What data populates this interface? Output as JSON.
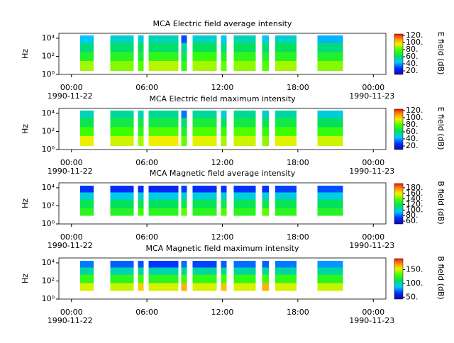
{
  "chart_data": [
    {
      "type": "heatmap",
      "title": "MCA  Electric field average intensity",
      "ylabel": "Hz",
      "colorbar_label": "E field (dB)",
      "colormap": "jet",
      "yscale": "log",
      "xlim": [
        -1,
        25
      ],
      "ylim": [
        1,
        35000
      ],
      "xticks": [
        {
          "value": 0,
          "label": "00:00",
          "date": "1990-11-22"
        },
        {
          "value": 6,
          "label": "06:00"
        },
        {
          "value": 12,
          "label": "12:00"
        },
        {
          "value": 18,
          "label": "18:00"
        },
        {
          "value": 24,
          "label": "00:00",
          "date": "1990-11-23"
        }
      ],
      "yticks": [
        {
          "value": 1,
          "label": "10⁰"
        },
        {
          "value": 100,
          "label": "10²"
        },
        {
          "value": 10000,
          "label": "10⁴"
        }
      ],
      "clim": [
        10,
        124
      ],
      "cticks": [
        {
          "value": 20,
          "label": "20."
        },
        {
          "value": 40,
          "label": "40."
        },
        {
          "value": 60,
          "label": "60."
        },
        {
          "value": 80,
          "label": "80."
        },
        {
          "value": 100,
          "label": "100."
        },
        {
          "value": 120,
          "label": "120."
        }
      ],
      "segments": [
        [
          0.68,
          1.75
        ],
        [
          3.1,
          4.96
        ],
        [
          5.3,
          5.75
        ],
        [
          6.14,
          8.5
        ],
        [
          8.73,
          9.18
        ],
        [
          9.63,
          11.55
        ],
        [
          11.9,
          12.34
        ],
        [
          12.9,
          14.65
        ],
        [
          15.15,
          15.7
        ],
        [
          16.2,
          17.9
        ],
        [
          19.55,
          21.6
        ]
      ],
      "y_bins": [
        2.5,
        30,
        300,
        3000,
        20000
      ],
      "values": [
        [
          88,
          70,
          58,
          45
        ],
        [
          85,
          72,
          60,
          50
        ],
        [
          80,
          68,
          62,
          48
        ],
        [
          90,
          74,
          60,
          52
        ],
        [
          75,
          65,
          55,
          30
        ],
        [
          88,
          76,
          62,
          50
        ],
        [
          82,
          70,
          58,
          44
        ],
        [
          86,
          74,
          62,
          52
        ],
        [
          80,
          70,
          60,
          46
        ],
        [
          88,
          72,
          62,
          50
        ],
        [
          85,
          70,
          58,
          42
        ]
      ]
    },
    {
      "type": "heatmap",
      "title": "MCA  Electric field maximum intensity",
      "ylabel": "Hz",
      "colorbar_label": "E field (dB)",
      "colormap": "jet",
      "yscale": "log",
      "xlim": [
        -1,
        25
      ],
      "ylim": [
        1,
        35000
      ],
      "xticks": [
        {
          "value": 0,
          "label": "00:00",
          "date": "1990-11-22"
        },
        {
          "value": 6,
          "label": "06:00"
        },
        {
          "value": 12,
          "label": "12:00"
        },
        {
          "value": 18,
          "label": "18:00"
        },
        {
          "value": 24,
          "label": "00:00",
          "date": "1990-11-23"
        }
      ],
      "yticks": [
        {
          "value": 1,
          "label": "10⁰"
        },
        {
          "value": 100,
          "label": "10²"
        },
        {
          "value": 10000,
          "label": "10⁴"
        }
      ],
      "clim": [
        10,
        124
      ],
      "cticks": [
        {
          "value": 20,
          "label": "20."
        },
        {
          "value": 40,
          "label": "40."
        },
        {
          "value": 60,
          "label": "60."
        },
        {
          "value": 80,
          "label": "80."
        },
        {
          "value": 100,
          "label": "100."
        },
        {
          "value": 120,
          "label": "120."
        }
      ],
      "segments": [
        [
          0.68,
          1.75
        ],
        [
          3.1,
          4.96
        ],
        [
          5.3,
          5.75
        ],
        [
          6.14,
          8.5
        ],
        [
          8.73,
          9.18
        ],
        [
          9.63,
          11.55
        ],
        [
          11.9,
          12.34
        ],
        [
          12.9,
          14.65
        ],
        [
          15.15,
          15.7
        ],
        [
          16.2,
          17.9
        ],
        [
          19.55,
          21.6
        ]
      ],
      "y_bins": [
        2.5,
        30,
        300,
        3000,
        20000
      ],
      "values": [
        [
          95,
          78,
          64,
          52
        ],
        [
          92,
          78,
          66,
          55
        ],
        [
          88,
          74,
          66,
          52
        ],
        [
          96,
          80,
          66,
          56
        ],
        [
          82,
          70,
          60,
          35
        ],
        [
          94,
          80,
          68,
          55
        ],
        [
          88,
          76,
          62,
          48
        ],
        [
          92,
          80,
          66,
          56
        ],
        [
          86,
          76,
          64,
          50
        ],
        [
          94,
          78,
          66,
          54
        ],
        [
          92,
          76,
          62,
          48
        ]
      ]
    },
    {
      "type": "heatmap",
      "title": "MCA  Magnetic field average intensity",
      "ylabel": "Hz",
      "colorbar_label": "B field (dB)",
      "colormap": "jet",
      "yscale": "log",
      "xlim": [
        -1,
        25
      ],
      "ylim": [
        1,
        35000
      ],
      "xticks": [
        {
          "value": 0,
          "label": "00:00",
          "date": "1990-11-22"
        },
        {
          "value": 6,
          "label": "06:00"
        },
        {
          "value": 12,
          "label": "12:00"
        },
        {
          "value": 18,
          "label": "18:00"
        },
        {
          "value": 24,
          "label": "00:00",
          "date": "1990-11-23"
        }
      ],
      "yticks": [
        {
          "value": 1,
          "label": "10⁰"
        },
        {
          "value": 100,
          "label": "10²"
        },
        {
          "value": 10000,
          "label": "10⁴"
        }
      ],
      "clim": [
        50,
        195
      ],
      "cticks": [
        {
          "value": 60,
          "label": "60."
        },
        {
          "value": 80,
          "label": "80."
        },
        {
          "value": 100,
          "label": "100."
        },
        {
          "value": 120,
          "label": "120."
        },
        {
          "value": 140,
          "label": "140."
        },
        {
          "value": 160,
          "label": "160."
        },
        {
          "value": 180,
          "label": "180."
        }
      ],
      "segments": [
        [
          0.68,
          1.75
        ],
        [
          3.1,
          4.96
        ],
        [
          5.3,
          5.75
        ],
        [
          6.14,
          8.5
        ],
        [
          8.73,
          9.18
        ],
        [
          9.63,
          11.55
        ],
        [
          11.9,
          12.34
        ],
        [
          12.9,
          14.65
        ],
        [
          15.15,
          15.7
        ],
        [
          16.2,
          17.9
        ],
        [
          19.55,
          21.6
        ]
      ],
      "y_bins": [
        8,
        60,
        500,
        3000,
        17000
      ],
      "values": [
        [
          130,
          118,
          98,
          72
        ],
        [
          128,
          116,
          96,
          70
        ],
        [
          135,
          118,
          98,
          70
        ],
        [
          130,
          116,
          96,
          68
        ],
        [
          140,
          120,
          100,
          74
        ],
        [
          130,
          118,
          98,
          70
        ],
        [
          138,
          120,
          98,
          72
        ],
        [
          130,
          118,
          98,
          72
        ],
        [
          140,
          120,
          98,
          72
        ],
        [
          130,
          118,
          98,
          74
        ],
        [
          128,
          116,
          98,
          76
        ]
      ]
    },
    {
      "type": "heatmap",
      "title": "MCA  Magnetic field maximum intensity",
      "ylabel": "Hz",
      "colorbar_label": "B field (dB)",
      "colormap": "jet",
      "yscale": "log",
      "xlim": [
        -1,
        25
      ],
      "ylim": [
        1,
        35000
      ],
      "xticks": [
        {
          "value": 0,
          "label": "00:00",
          "date": "1990-11-22"
        },
        {
          "value": 6,
          "label": "06:00"
        },
        {
          "value": 12,
          "label": "12:00"
        },
        {
          "value": 18,
          "label": "18:00"
        },
        {
          "value": 24,
          "label": "00:00",
          "date": "1990-11-23"
        }
      ],
      "yticks": [
        {
          "value": 1,
          "label": "10⁰"
        },
        {
          "value": 100,
          "label": "10²"
        },
        {
          "value": 10000,
          "label": "10⁴"
        }
      ],
      "clim": [
        43,
        190
      ],
      "cticks": [
        {
          "value": 50,
          "label": "50."
        },
        {
          "value": 100,
          "label": "100."
        },
        {
          "value": 150,
          "label": "150."
        }
      ],
      "segments": [
        [
          0.68,
          1.75
        ],
        [
          3.1,
          4.96
        ],
        [
          5.3,
          5.75
        ],
        [
          6.14,
          8.5
        ],
        [
          8.73,
          9.18
        ],
        [
          9.63,
          11.55
        ],
        [
          11.9,
          12.34
        ],
        [
          12.9,
          14.65
        ],
        [
          15.15,
          15.7
        ],
        [
          16.2,
          17.9
        ],
        [
          19.55,
          21.6
        ]
      ],
      "y_bins": [
        8,
        60,
        500,
        3000,
        17000
      ],
      "values": [
        [
          150,
          126,
          100,
          76
        ],
        [
          148,
          124,
          98,
          72
        ],
        [
          160,
          128,
          100,
          70
        ],
        [
          150,
          124,
          98,
          66
        ],
        [
          165,
          130,
          102,
          74
        ],
        [
          150,
          126,
          100,
          68
        ],
        [
          162,
          130,
          100,
          72
        ],
        [
          150,
          126,
          100,
          74
        ],
        [
          165,
          130,
          100,
          72
        ],
        [
          150,
          126,
          100,
          76
        ],
        [
          148,
          124,
          100,
          80
        ]
      ]
    }
  ]
}
